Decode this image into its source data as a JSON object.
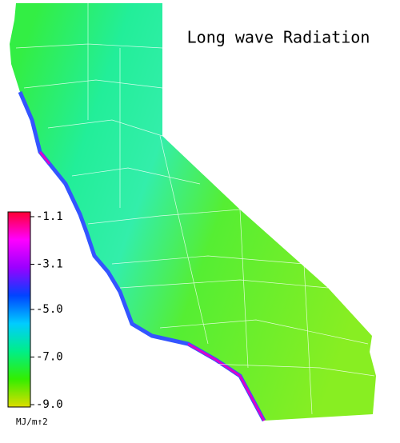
{
  "title": "Long wave Radiation",
  "colorbar": {
    "label": "MJ/m↑2",
    "lim": [
      -9.1,
      -0.9
    ],
    "colors": [
      "#dddd00",
      "#33ee00",
      "#00ee88",
      "#00ccff",
      "#0044ff",
      "#9900ff",
      "#ff00ff",
      "#ff0033"
    ],
    "ticks": [
      -1.1,
      -3.1,
      {
        "value": -5,
        "label": "-5.0"
      },
      {
        "value": -7,
        "label": "-7.0"
      },
      {
        "value": -9,
        "label": "-9.0"
      }
    ]
  }
}
